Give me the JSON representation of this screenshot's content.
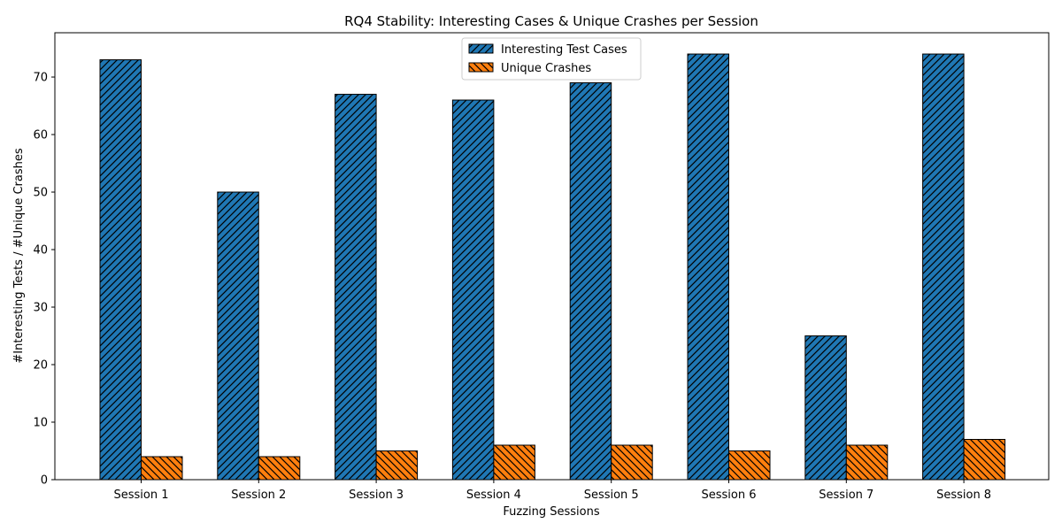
{
  "chart_data": {
    "type": "bar",
    "title": "RQ4 Stability: Interesting Cases & Unique Crashes per Session",
    "xlabel": "Fuzzing Sessions",
    "ylabel": "#Interesting Tests / #Unique Crashes",
    "ylim": [
      0,
      77.7
    ],
    "yticks": [
      0,
      10,
      20,
      30,
      40,
      50,
      60,
      70
    ],
    "grid": false,
    "legend_position": "top-center",
    "categories": [
      "Session 1",
      "Session 2",
      "Session 3",
      "Session 4",
      "Session 5",
      "Session 6",
      "Session 7",
      "Session 8"
    ],
    "series": [
      {
        "name": "Interesting Test Cases",
        "values": [
          73,
          50,
          67,
          66,
          69,
          74,
          25,
          74
        ],
        "color": "#1f77b4",
        "hatch": "forward-diagonal"
      },
      {
        "name": "Unique Crashes",
        "values": [
          4,
          4,
          5,
          6,
          6,
          5,
          6,
          7
        ],
        "color": "#ff7f0e",
        "hatch": "backward-diagonal"
      }
    ]
  }
}
